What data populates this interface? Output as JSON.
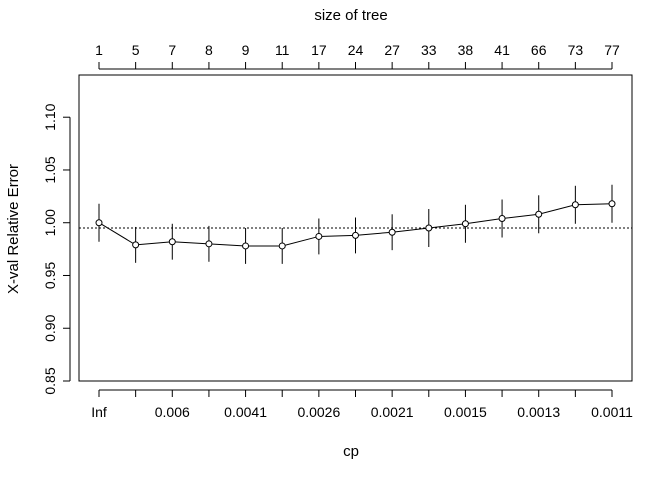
{
  "chart_data": {
    "type": "line",
    "title": "",
    "xlabel": "cp",
    "ylabel": "X-val Relative Error",
    "top_axis_label": "size of tree",
    "categories_cp": [
      "Inf",
      "",
      "0.006",
      "",
      "0.0041",
      "",
      "0.0026",
      "",
      "0.0021",
      "",
      "0.0015",
      "",
      "0.0013",
      "",
      "0.0011"
    ],
    "size_of_tree": [
      "1",
      "5",
      "7",
      "8",
      "9",
      "11",
      "17",
      "24",
      "27",
      "33",
      "38",
      "41",
      "66",
      "73",
      "77"
    ],
    "series": [
      {
        "values": [
          1.0,
          0.979,
          0.982,
          0.98,
          0.978,
          0.978,
          0.987,
          0.988,
          0.991,
          0.995,
          0.999,
          1.004,
          1.008,
          1.017,
          1.018
        ],
        "lower": [
          0.982,
          0.962,
          0.965,
          0.963,
          0.961,
          0.961,
          0.97,
          0.971,
          0.974,
          0.977,
          0.981,
          0.986,
          0.99,
          0.999,
          1.0
        ],
        "upper": [
          1.018,
          0.996,
          0.999,
          0.997,
          0.995,
          0.995,
          1.004,
          1.005,
          1.008,
          1.013,
          1.017,
          1.022,
          1.026,
          1.035,
          1.036
        ]
      }
    ],
    "reference_line": 0.995,
    "ylim": [
      0.85,
      1.14
    ],
    "yticks": [
      "0.85",
      "0.90",
      "0.95",
      "1.00",
      "1.05",
      "1.10"
    ],
    "ytick_values": [
      0.85,
      0.9,
      0.95,
      1.0,
      1.05,
      1.1
    ],
    "grid": false,
    "colors": {
      "line": "#000000",
      "reference": "#000000"
    }
  }
}
